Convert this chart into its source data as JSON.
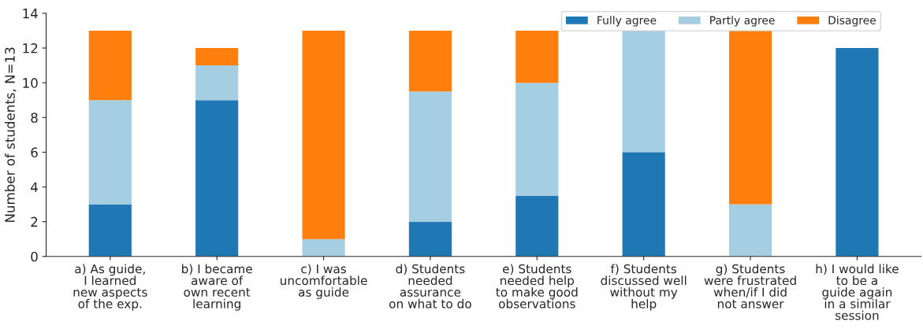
{
  "chart_data": {
    "type": "bar",
    "stacked": true,
    "ylabel": "Number of students, N=13",
    "categories": [
      "a) As guide,\nI learned\nnew aspects\nof the exp.",
      "b) I became\naware of\nown recent\nlearning",
      "c) I was\nuncomfortable\nas guide",
      "d) Students\nneeded\nassurance\non what to do",
      "e) Students\nneeded help\nto make good\nobservations",
      "f) Students\ndiscussed well\nwithout my\nhelp",
      "g) Students\nwere frustrated\nwhen/if I did\nnot answer",
      "h) I would like\nto be a\nguide again\nin a similar\nsession"
    ],
    "series": [
      {
        "name": "Fully agree",
        "color": "#1f77b4",
        "values": [
          3,
          9,
          0,
          2,
          3.5,
          6,
          0,
          12
        ]
      },
      {
        "name": "Partly agree",
        "color": "#a6cee3",
        "values": [
          6,
          2,
          1,
          7.5,
          6.5,
          7,
          3,
          0
        ]
      },
      {
        "name": "Disagree",
        "color": "#ff7f0e",
        "values": [
          4,
          1,
          12,
          3.5,
          3,
          0,
          10,
          0
        ]
      }
    ],
    "ylim": [
      0,
      14
    ],
    "yticks": [
      0,
      2,
      4,
      6,
      8,
      10,
      12,
      14
    ],
    "legend": "top right",
    "grid": false
  }
}
